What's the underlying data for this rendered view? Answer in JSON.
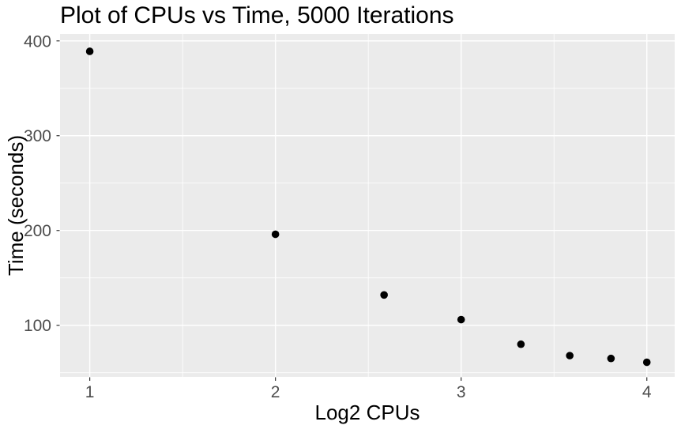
{
  "chart_data": {
    "type": "scatter",
    "title": "Plot of CPUs vs Time, 5000 Iterations",
    "xlabel": "Log2 CPUs",
    "ylabel": "Time (seconds)",
    "x": [
      1.0,
      2.0,
      2.585,
      3.0,
      3.322,
      3.585,
      3.807,
      4.0
    ],
    "y": [
      389,
      196,
      132,
      106,
      80,
      68,
      65,
      61
    ],
    "xlim": [
      0.84,
      4.15
    ],
    "ylim": [
      45.6,
      407.3
    ],
    "x_ticks": [
      1,
      2,
      3,
      4
    ],
    "x_tick_labels": [
      "1",
      "2",
      "3",
      "4"
    ],
    "y_ticks": [
      100,
      200,
      300,
      400
    ],
    "y_tick_labels": [
      "100",
      "200",
      "300",
      "400"
    ],
    "x_minor_ticks": [
      1.5,
      2.5,
      3.5
    ],
    "y_minor_ticks": [
      50,
      150,
      250,
      350
    ],
    "grid": "major and minor, on",
    "legend": "none",
    "style": {
      "background_color": "#FFFFFF",
      "panel_background": "#EBEBEB",
      "grid_color": "#FFFFFF",
      "point_color": "#000000",
      "point_radius_px": 4.8,
      "tick_label_color": "#4D4D4D",
      "tick_mark_color": "#333333",
      "title_color": "#000000",
      "axis_title_color": "#000000"
    }
  }
}
